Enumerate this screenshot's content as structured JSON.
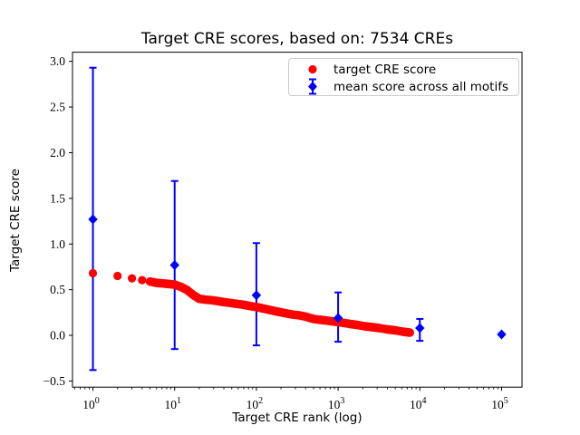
{
  "chart_data": {
    "type": "scatter",
    "title": "Target CRE scores, based on: 7534 CREs",
    "xlabel": "Target CRE rank (log)",
    "ylabel": "Target CRE score",
    "x_scale": "log",
    "xlim": [
      0.5623,
      177828
    ],
    "ylim": [
      -0.567,
      3.1
    ],
    "grid": false,
    "x_ticks": [
      {
        "v": 1,
        "base": "10",
        "exp": "0"
      },
      {
        "v": 10,
        "base": "10",
        "exp": "1"
      },
      {
        "v": 100,
        "base": "10",
        "exp": "2"
      },
      {
        "v": 1000,
        "base": "10",
        "exp": "3"
      },
      {
        "v": 10000,
        "base": "10",
        "exp": "4"
      },
      {
        "v": 100000,
        "base": "10",
        "exp": "5"
      }
    ],
    "y_ticks": [
      {
        "v": -0.5,
        "label": "−0.5"
      },
      {
        "v": 0.0,
        "label": "0.0"
      },
      {
        "v": 0.5,
        "label": "0.5"
      },
      {
        "v": 1.0,
        "label": "1.0"
      },
      {
        "v": 1.5,
        "label": "1.5"
      },
      {
        "v": 2.0,
        "label": "2.0"
      },
      {
        "v": 2.5,
        "label": "2.5"
      },
      {
        "v": 3.0,
        "label": "3.0"
      }
    ],
    "colors": {
      "target": "#ff0000",
      "mean": "#0000ff",
      "axes": "#000000",
      "legend_border": "#cccccc"
    },
    "legend": {
      "position": "upper right",
      "entries": [
        {
          "label": "target CRE score",
          "marker": "circle",
          "color": "#ff0000"
        },
        {
          "label": "mean score across all motifs",
          "marker": "diamond-errorbar",
          "color": "#0000ff"
        }
      ]
    },
    "series": [
      {
        "name": "target CRE score",
        "type": "scatter-band",
        "color": "#ff0000",
        "band_from_rank": 5,
        "points": [
          [
            1,
            0.68
          ],
          [
            2,
            0.65
          ],
          [
            3,
            0.625
          ],
          [
            4,
            0.605
          ],
          [
            5,
            0.59
          ],
          [
            6,
            0.575
          ],
          [
            7,
            0.57
          ],
          [
            8,
            0.565
          ],
          [
            9,
            0.56
          ],
          [
            10,
            0.555
          ],
          [
            12,
            0.53
          ],
          [
            14,
            0.5
          ],
          [
            17,
            0.44
          ],
          [
            20,
            0.4
          ],
          [
            24,
            0.39
          ],
          [
            28,
            0.385
          ],
          [
            34,
            0.375
          ],
          [
            40,
            0.365
          ],
          [
            48,
            0.355
          ],
          [
            58,
            0.345
          ],
          [
            70,
            0.335
          ],
          [
            85,
            0.32
          ],
          [
            100,
            0.31
          ],
          [
            120,
            0.295
          ],
          [
            150,
            0.275
          ],
          [
            180,
            0.26
          ],
          [
            220,
            0.245
          ],
          [
            270,
            0.23
          ],
          [
            330,
            0.22
          ],
          [
            400,
            0.205
          ],
          [
            500,
            0.18
          ],
          [
            600,
            0.17
          ],
          [
            750,
            0.16
          ],
          [
            900,
            0.15
          ],
          [
            1100,
            0.14
          ],
          [
            1400,
            0.125
          ],
          [
            1700,
            0.115
          ],
          [
            2100,
            0.1
          ],
          [
            2600,
            0.09
          ],
          [
            3200,
            0.08
          ],
          [
            4000,
            0.065
          ],
          [
            5000,
            0.055
          ],
          [
            6200,
            0.04
          ],
          [
            7534,
            0.03
          ]
        ]
      },
      {
        "name": "mean score across all motifs",
        "type": "errorbar",
        "color": "#0000ff",
        "points": [
          {
            "x": 1,
            "y": 1.27,
            "lo": -0.38,
            "hi": 2.93
          },
          {
            "x": 10,
            "y": 0.77,
            "lo": -0.15,
            "hi": 1.69
          },
          {
            "x": 100,
            "y": 0.44,
            "lo": -0.11,
            "hi": 1.01
          },
          {
            "x": 1000,
            "y": 0.19,
            "lo": -0.07,
            "hi": 0.47
          },
          {
            "x": 10000,
            "y": 0.08,
            "lo": -0.06,
            "hi": 0.18
          },
          {
            "x": 100000,
            "y": 0.01,
            "lo": 0.01,
            "hi": 0.01
          }
        ]
      }
    ]
  }
}
